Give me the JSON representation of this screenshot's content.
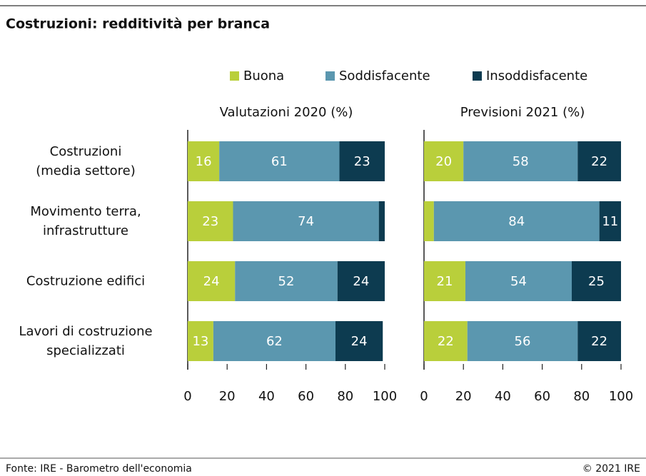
{
  "title": "Costruzioni: redditività per branca",
  "chart_data": [
    {
      "type": "bar",
      "orientation": "horizontal",
      "stacked": true,
      "title": "Valutazioni 2020 (%)",
      "categories": [
        "Costruzioni\n(media settore)",
        "Movimento terra,\ninfrastrutture",
        "Costruzione edifici",
        "Lavori di costruzione\nspecializzati"
      ],
      "series": [
        {
          "name": "Buona",
          "color": "#b9cf3b",
          "values": [
            16,
            23,
            24,
            13
          ]
        },
        {
          "name": "Soddisfacente",
          "color": "#5b97af",
          "values": [
            61,
            74,
            52,
            62
          ]
        },
        {
          "name": "Insoddisfacente",
          "color": "#0d3b50",
          "values": [
            23,
            3,
            24,
            24
          ]
        }
      ],
      "xlim": [
        0,
        100
      ],
      "xticks": [
        0,
        20,
        40,
        60,
        80,
        100
      ]
    },
    {
      "type": "bar",
      "orientation": "horizontal",
      "stacked": true,
      "title": "Previsioni 2021 (%)",
      "series": [
        {
          "color": "#b9cf3b",
          "values": [
            20,
            5,
            21,
            22
          ]
        },
        {
          "color": "#5b97af",
          "values": [
            58,
            84,
            54,
            56
          ]
        },
        {
          "color": "#0d3b50",
          "values": [
            22,
            11,
            25,
            22
          ]
        }
      ],
      "xlim": [
        0,
        100
      ],
      "xticks": [
        0,
        20,
        40,
        60,
        80,
        100
      ]
    }
  ],
  "footer": {
    "source": "Fonte: IRE - Barometro dell'economia",
    "copyright": "© 2021 IRE"
  }
}
